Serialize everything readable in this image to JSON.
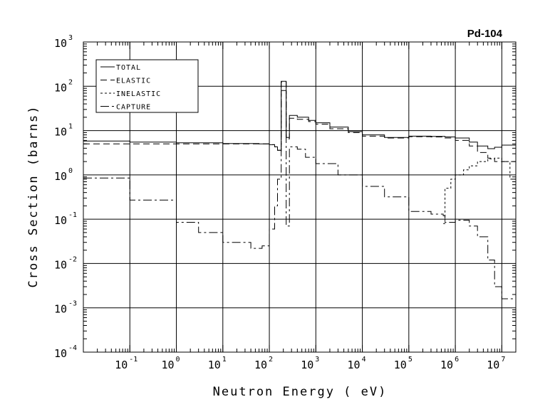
{
  "chart_data": {
    "type": "line",
    "title": "Pd-104",
    "xlabel": "Neutron Energy ( eV)",
    "ylabel": "Cross Section (barns)",
    "x_scale": "log",
    "y_scale": "log",
    "xlim": [
      0.01,
      20000000
    ],
    "ylim": [
      0.0001,
      1000
    ],
    "grid": true,
    "legend_position": "top-left",
    "x_ticks": [
      {
        "base": "10",
        "exp": "-1",
        "value": 0.1
      },
      {
        "base": "10",
        "exp": "0",
        "value": 1
      },
      {
        "base": "10",
        "exp": "1",
        "value": 10
      },
      {
        "base": "10",
        "exp": "2",
        "value": 100
      },
      {
        "base": "10",
        "exp": "3",
        "value": 1000
      },
      {
        "base": "10",
        "exp": "4",
        "value": 10000
      },
      {
        "base": "10",
        "exp": "5",
        "value": 100000
      },
      {
        "base": "10",
        "exp": "6",
        "value": 1000000
      },
      {
        "base": "10",
        "exp": "7",
        "value": 10000000
      }
    ],
    "y_ticks": [
      {
        "base": "10",
        "exp": "3",
        "value": 1000
      },
      {
        "base": "10",
        "exp": "2",
        "value": 100
      },
      {
        "base": "10",
        "exp": "1",
        "value": 10
      },
      {
        "base": "10",
        "exp": "0",
        "value": 1
      },
      {
        "base": "10",
        "exp": "-1",
        "value": 0.1
      },
      {
        "base": "10",
        "exp": "-2",
        "value": 0.01
      },
      {
        "base": "10",
        "exp": "-3",
        "value": 0.001
      },
      {
        "base": "10",
        "exp": "-4",
        "value": 0.0001
      }
    ],
    "series": [
      {
        "name": "TOTAL",
        "dash": "",
        "points": [
          [
            0.01,
            5.8
          ],
          [
            0.1,
            5.5
          ],
          [
            1,
            5.3
          ],
          [
            10,
            5.1
          ],
          [
            60,
            5.0
          ],
          [
            100,
            4.8
          ],
          [
            130,
            4.3
          ],
          [
            150,
            3.6
          ],
          [
            180,
            3.5
          ],
          [
            180,
            130
          ],
          [
            230,
            130
          ],
          [
            230,
            7
          ],
          [
            270,
            7
          ],
          [
            270,
            22
          ],
          [
            400,
            20
          ],
          [
            700,
            17
          ],
          [
            1000,
            15
          ],
          [
            2000,
            12
          ],
          [
            5000,
            9.5
          ],
          [
            10000,
            8
          ],
          [
            30000,
            7
          ],
          [
            100000,
            7.5
          ],
          [
            300000,
            7.4
          ],
          [
            600000,
            7.2
          ],
          [
            1000000,
            6.8
          ],
          [
            2000000,
            5.5
          ],
          [
            3000000,
            4.5
          ],
          [
            5000000,
            3.9
          ],
          [
            7000000,
            4.2
          ],
          [
            10000000,
            4.7
          ],
          [
            20000000,
            4.3
          ]
        ]
      },
      {
        "name": "ELASTIC",
        "dash": "9,5",
        "points": [
          [
            0.01,
            5.0
          ],
          [
            0.1,
            5.0
          ],
          [
            1,
            5.0
          ],
          [
            10,
            5.0
          ],
          [
            60,
            5.0
          ],
          [
            100,
            4.8
          ],
          [
            130,
            4.3
          ],
          [
            150,
            3.6
          ],
          [
            180,
            3.4
          ],
          [
            180,
            125
          ],
          [
            230,
            125
          ],
          [
            230,
            6.5
          ],
          [
            270,
            6.5
          ],
          [
            270,
            19
          ],
          [
            400,
            18
          ],
          [
            700,
            16
          ],
          [
            1000,
            14
          ],
          [
            2000,
            11
          ],
          [
            5000,
            9
          ],
          [
            10000,
            7.5
          ],
          [
            30000,
            6.8
          ],
          [
            100000,
            7.3
          ],
          [
            300000,
            7.2
          ],
          [
            600000,
            6.8
          ],
          [
            1000000,
            6.0
          ],
          [
            2000000,
            4.5
          ],
          [
            3000000,
            3.2
          ],
          [
            5000000,
            2.4
          ],
          [
            7000000,
            2.0
          ],
          [
            10000000,
            2.0
          ],
          [
            20000000,
            2.5
          ]
        ]
      },
      {
        "name": "INELASTIC",
        "dash": "3,3",
        "points": [
          [
            550000,
            0.08
          ],
          [
            600000,
            0.5
          ],
          [
            800000,
            0.8
          ],
          [
            1000000,
            1.0
          ],
          [
            1500000,
            1.3
          ],
          [
            2000000,
            1.6
          ],
          [
            3000000,
            2.0
          ],
          [
            5000000,
            2.3
          ],
          [
            7000000,
            2.4
          ],
          [
            10000000,
            2.0
          ],
          [
            15000000,
            0.8
          ],
          [
            20000000,
            0.3
          ]
        ]
      },
      {
        "name": "CAPTURE",
        "dash": "12,4,3,4",
        "points": [
          [
            0.01,
            0.85
          ],
          [
            0.1,
            0.27
          ],
          [
            1,
            0.085
          ],
          [
            3,
            0.05
          ],
          [
            10,
            0.03
          ],
          [
            40,
            0.022
          ],
          [
            70,
            0.025
          ],
          [
            100,
            0.06
          ],
          [
            130,
            0.2
          ],
          [
            150,
            0.8
          ],
          [
            180,
            1.0
          ],
          [
            180,
            80
          ],
          [
            230,
            80
          ],
          [
            230,
            0.07
          ],
          [
            270,
            0.07
          ],
          [
            270,
            4.3
          ],
          [
            400,
            3.8
          ],
          [
            600,
            2.5
          ],
          [
            1000,
            1.8
          ],
          [
            3000,
            1.0
          ],
          [
            10000,
            0.55
          ],
          [
            30000,
            0.32
          ],
          [
            100000,
            0.15
          ],
          [
            300000,
            0.13
          ],
          [
            550000,
            0.12
          ],
          [
            600000,
            0.085
          ],
          [
            1000000,
            0.095
          ],
          [
            2000000,
            0.07
          ],
          [
            3000000,
            0.04
          ],
          [
            5000000,
            0.012
          ],
          [
            7000000,
            0.003
          ],
          [
            10000000,
            0.0016
          ],
          [
            20000000,
            0.001
          ]
        ]
      }
    ]
  }
}
